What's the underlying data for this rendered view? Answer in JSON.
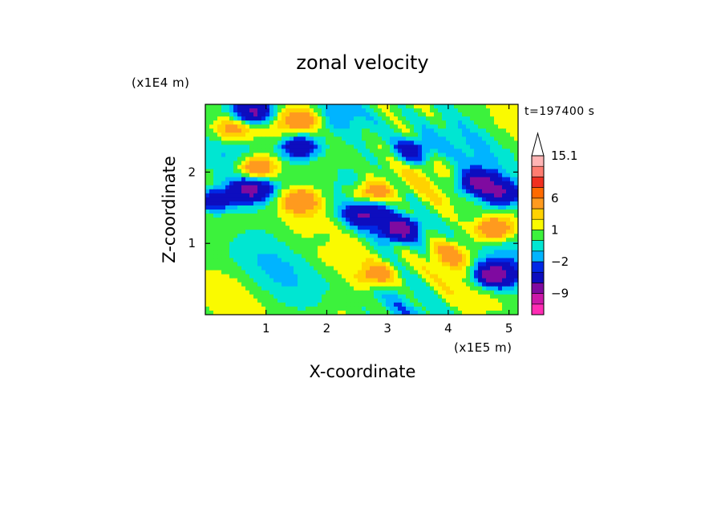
{
  "chart_data": {
    "type": "heatmap",
    "title": "zonal velocity",
    "xlabel": "X-coordinate",
    "ylabel": "Z-coordinate",
    "x_unit": "(x1E5 m)",
    "y_unit": "(x1E4 m)",
    "time_label": "t=197400 s",
    "xlim": [
      0,
      5.15
    ],
    "ylim": [
      0,
      2.95
    ],
    "x_ticks": [
      1,
      2,
      3,
      4,
      5
    ],
    "y_ticks": [
      1,
      2
    ],
    "colorbar": {
      "levels": [
        -15,
        -12,
        -9,
        -6,
        -3,
        -2,
        -1,
        0,
        1,
        2,
        3,
        6,
        9,
        12,
        15.1
      ],
      "labels": [
        "-9",
        "-2",
        "1",
        "6",
        "15.1"
      ],
      "colors": [
        "#ff2cb4",
        "#cc18a8",
        "#7f0aa0",
        "#0d0dbf",
        "#0028e6",
        "#00b4ff",
        "#00e6d2",
        "#3cf23c",
        "#fafa00",
        "#ffd200",
        "#ff9a1e",
        "#ff6a00",
        "#f03020",
        "#ff7c70",
        "#ffb4b4"
      ],
      "extend_max": true
    },
    "field_blobs": [
      {
        "x": 0.85,
        "z": 2.05,
        "v": 6
      },
      {
        "x": 1.55,
        "z": 1.6,
        "v": 5
      },
      {
        "x": 0.75,
        "z": 1.75,
        "v": -7
      },
      {
        "x": 0.15,
        "z": 1.6,
        "v": -6
      },
      {
        "x": 1.55,
        "z": 2.35,
        "v": -7
      },
      {
        "x": 0.8,
        "z": 2.85,
        "v": -8
      },
      {
        "x": 1.6,
        "z": 2.75,
        "v": 4
      },
      {
        "x": 2.75,
        "z": 1.7,
        "v": 5
      },
      {
        "x": 2.6,
        "z": 1.4,
        "v": -6
      },
      {
        "x": 3.2,
        "z": 1.2,
        "v": -7
      },
      {
        "x": 4.75,
        "z": 1.2,
        "v": 6
      },
      {
        "x": 4.75,
        "z": 0.55,
        "v": -9
      },
      {
        "x": 4.5,
        "z": 1.85,
        "v": -7
      },
      {
        "x": 4.9,
        "z": 1.7,
        "v": -6
      },
      {
        "x": 2.8,
        "z": 0.55,
        "v": 4
      },
      {
        "x": 1.9,
        "z": 1.05,
        "v": -1
      },
      {
        "x": 3.4,
        "z": 2.3,
        "v": -5
      },
      {
        "x": 2.1,
        "z": 2.75,
        "v": -1
      },
      {
        "x": 4.05,
        "z": 0.85,
        "v": 3
      },
      {
        "x": 0.45,
        "z": 2.6,
        "v": 4
      }
    ]
  }
}
